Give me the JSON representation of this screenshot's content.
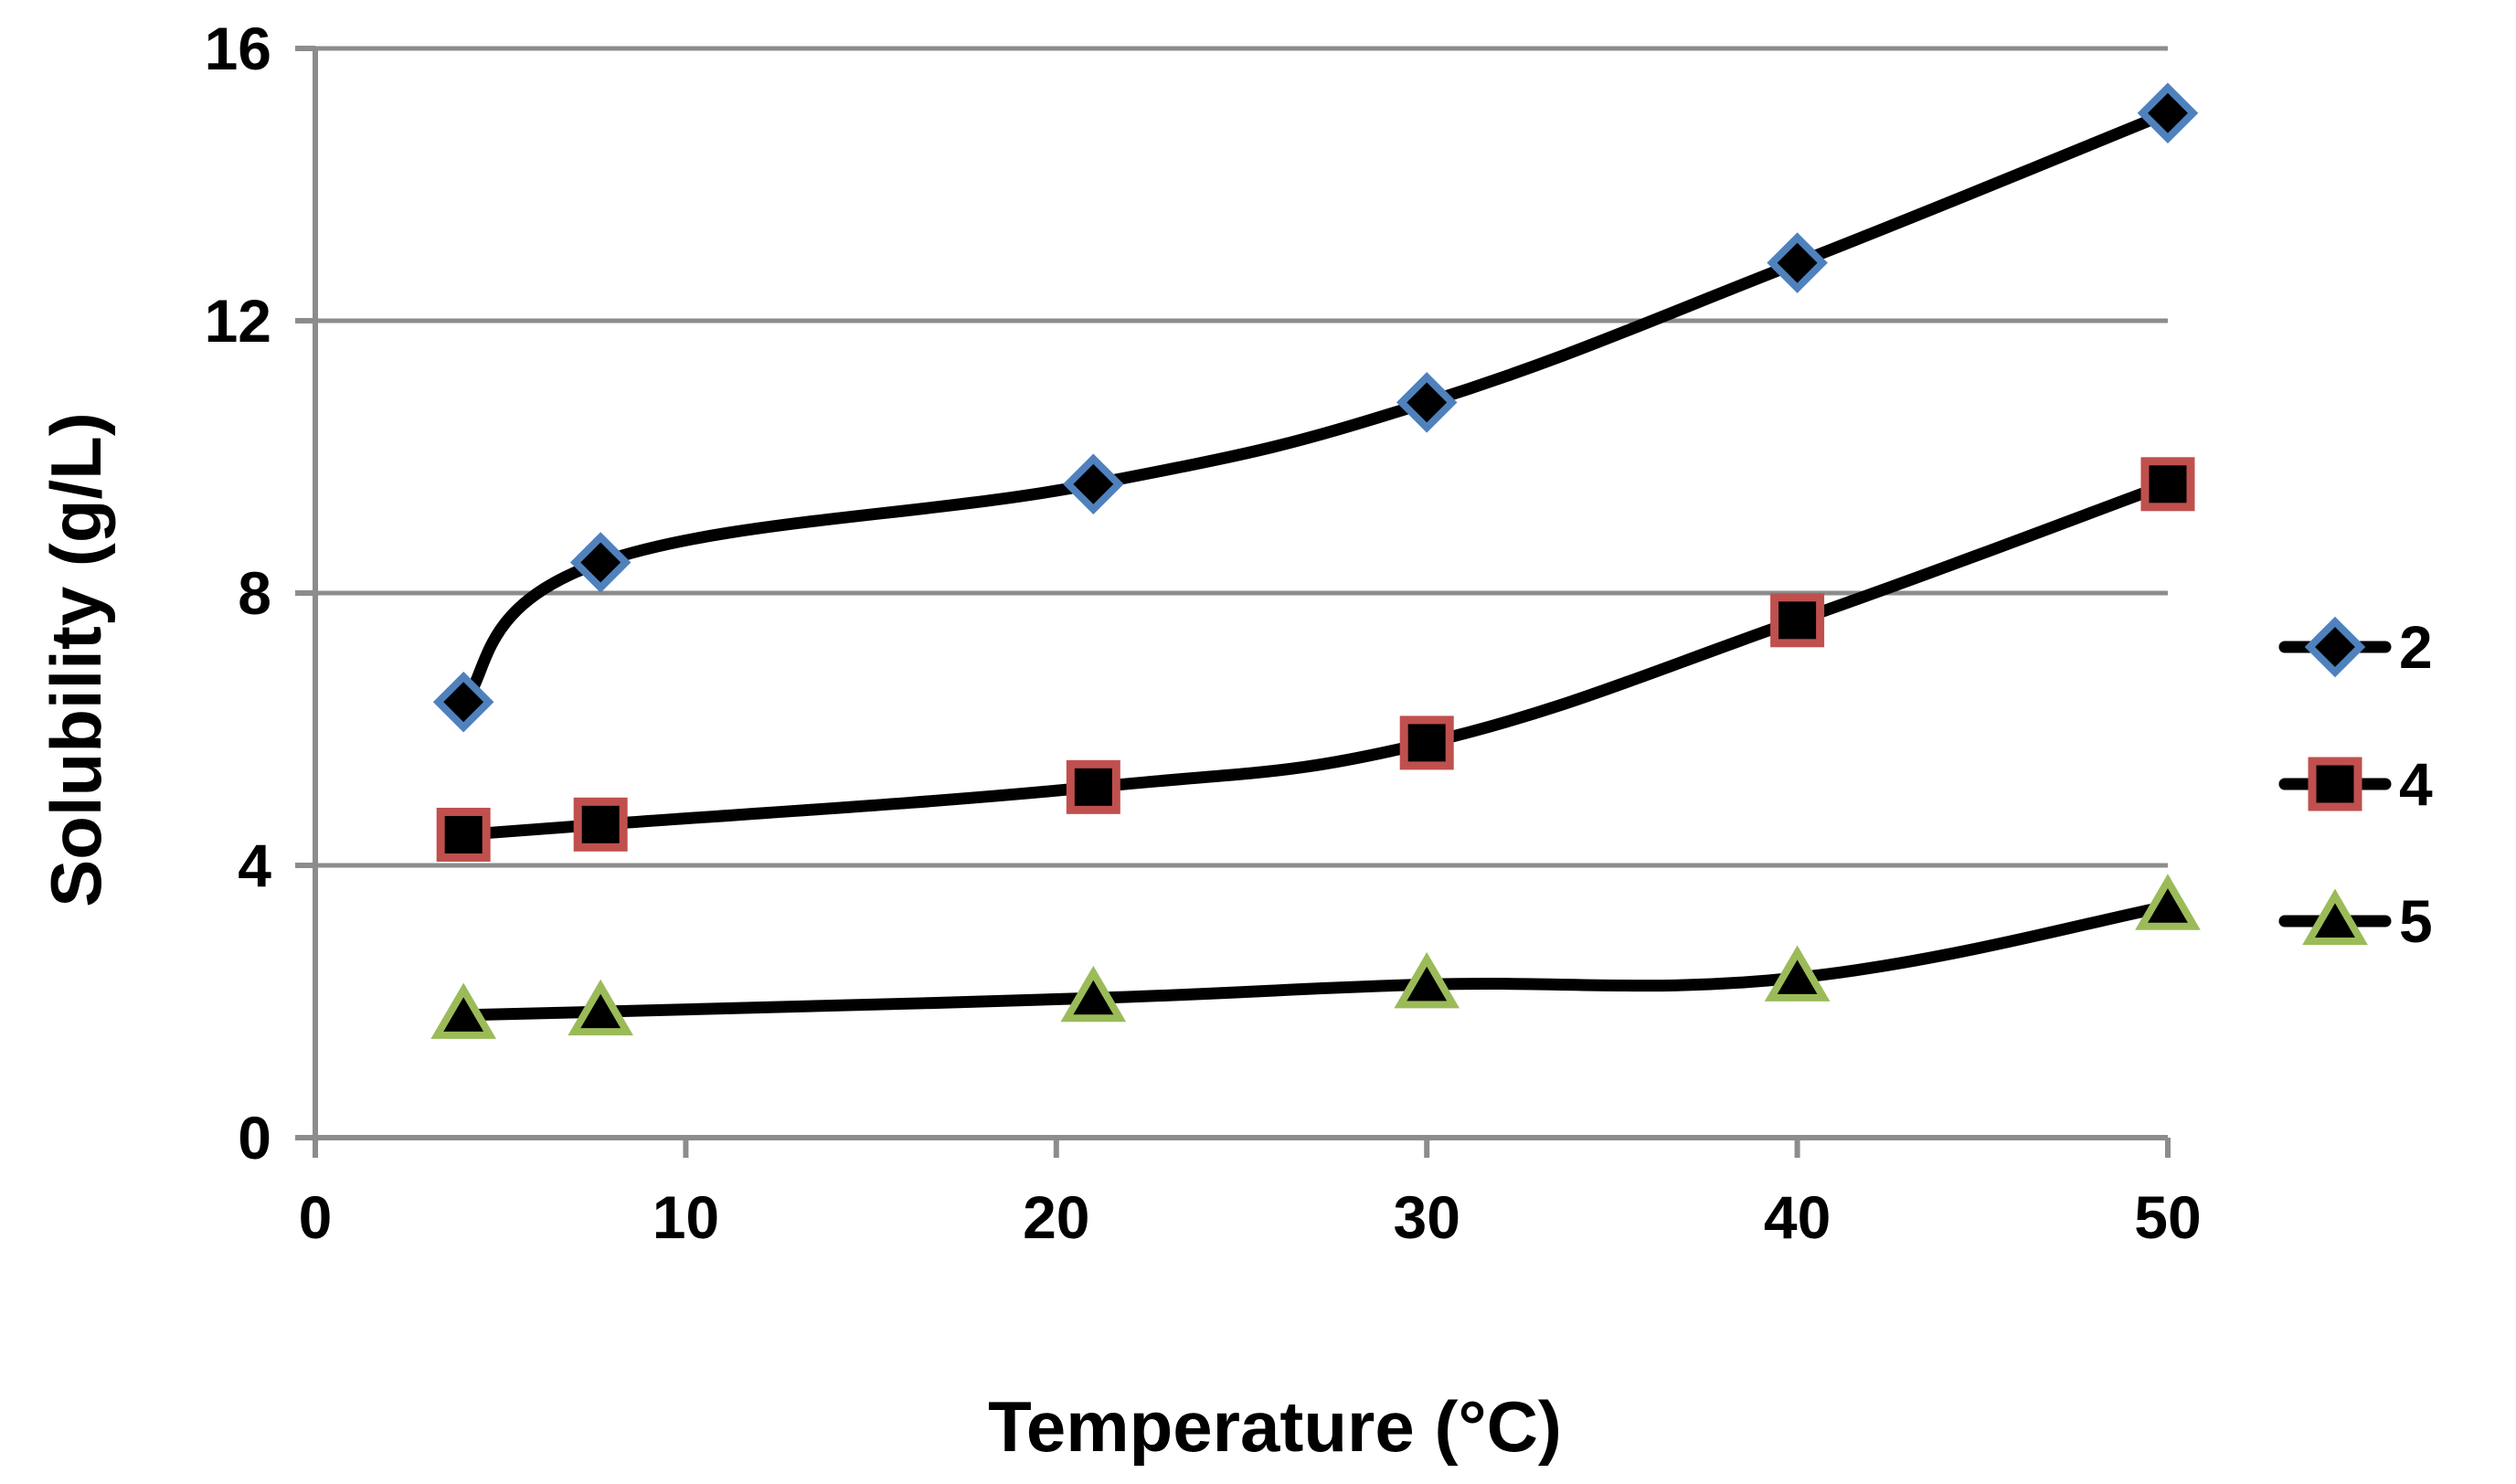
{
  "chart_data": {
    "type": "line",
    "title": "",
    "xlabel": "Temperature (°C)",
    "ylabel": "Solubility (g/L)",
    "xlim": [
      0,
      50
    ],
    "ylim": [
      0,
      16
    ],
    "xticks": [
      0,
      10,
      20,
      30,
      40,
      50
    ],
    "yticks": [
      0,
      4,
      8,
      12,
      16
    ],
    "grid": "horizontal",
    "legend_position": "right",
    "line_color": "#000000",
    "series": [
      {
        "name": "2",
        "marker": "diamond",
        "marker_fill": "#000000",
        "marker_edge": "#4f81bd",
        "x": [
          4,
          7.7,
          21,
          30,
          40,
          50
        ],
        "y": [
          6.4,
          8.45,
          9.6,
          10.8,
          12.85,
          15.05
        ]
      },
      {
        "name": "4",
        "marker": "square",
        "marker_fill": "#000000",
        "marker_edge": "#c0504d",
        "x": [
          4,
          7.7,
          21,
          30,
          40,
          50
        ],
        "y": [
          4.45,
          4.6,
          5.15,
          5.8,
          7.6,
          9.6
        ]
      },
      {
        "name": "5",
        "marker": "triangle",
        "marker_fill": "#000000",
        "marker_edge": "#9bbb59",
        "x": [
          4,
          7.7,
          21,
          30,
          40,
          50
        ],
        "y": [
          1.8,
          1.85,
          2.05,
          2.25,
          2.35,
          3.4
        ]
      }
    ]
  }
}
